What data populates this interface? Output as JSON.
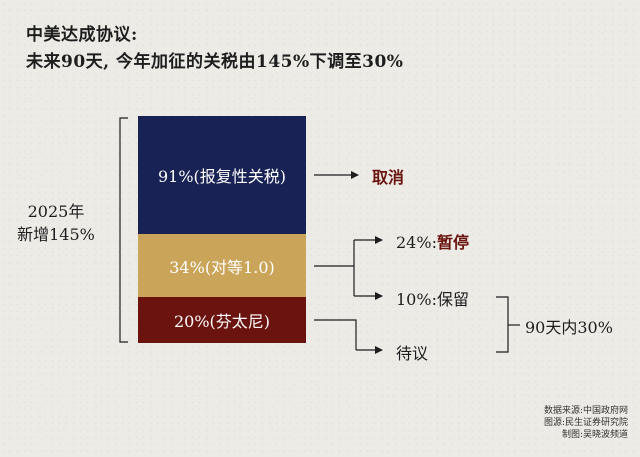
{
  "title": {
    "line1": "中美达成协议:",
    "line2": "未来90天, 今年加征的关税由145%下调至30%"
  },
  "total": {
    "year": "2025年",
    "added": "新增145%"
  },
  "blocks": [
    {
      "label": "91%(报复性关税)",
      "color": "#182255"
    },
    {
      "label": "34%(对等1.0)",
      "color": "#caa458"
    },
    {
      "label": "20%(芬太尼)",
      "color": "#6a130f"
    }
  ],
  "outcomes": {
    "cancel": "取消",
    "pause_prefix": "24%:",
    "pause_word": "暂停",
    "retain": "10%:保留",
    "pending": "待议",
    "within_90": "90天内30%"
  },
  "source": {
    "data": "数据来源:中国政府网",
    "chart": "图源:民生证券研究院",
    "made": "制图:吴晓波频道"
  }
}
